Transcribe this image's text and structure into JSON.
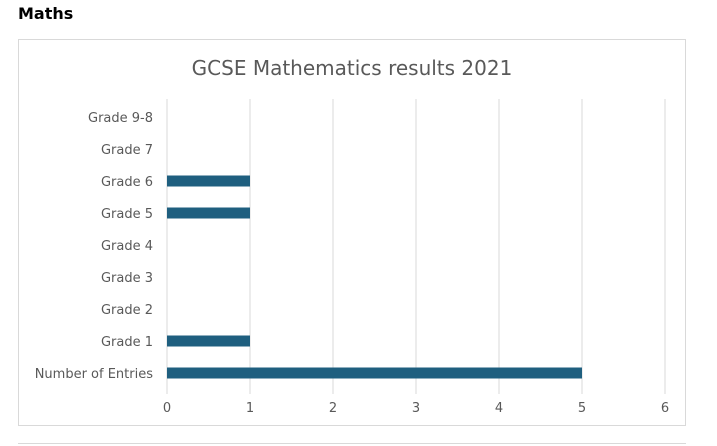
{
  "page": {
    "section_heading": "Maths"
  },
  "colors": {
    "bar": "#1f5f7f",
    "grid": "#d9d9d9",
    "tick_text": "#595959"
  },
  "chart_data": {
    "type": "bar",
    "orientation": "horizontal",
    "title": "GCSE Mathematics results 2021",
    "xlabel": "",
    "ylabel": "",
    "categories": [
      "Grade 9-8",
      "Grade 7",
      "Grade 6",
      "Grade 5",
      "Grade 4",
      "Grade 3",
      "Grade 2",
      "Grade 1",
      "Number of Entries"
    ],
    "values": [
      0,
      0,
      1,
      1,
      0,
      0,
      0,
      1,
      5
    ],
    "xlim": [
      0,
      6
    ],
    "xticks": [
      0,
      1,
      2,
      3,
      4,
      5,
      6
    ],
    "grid": "vertical major gridlines",
    "legend": "none"
  }
}
